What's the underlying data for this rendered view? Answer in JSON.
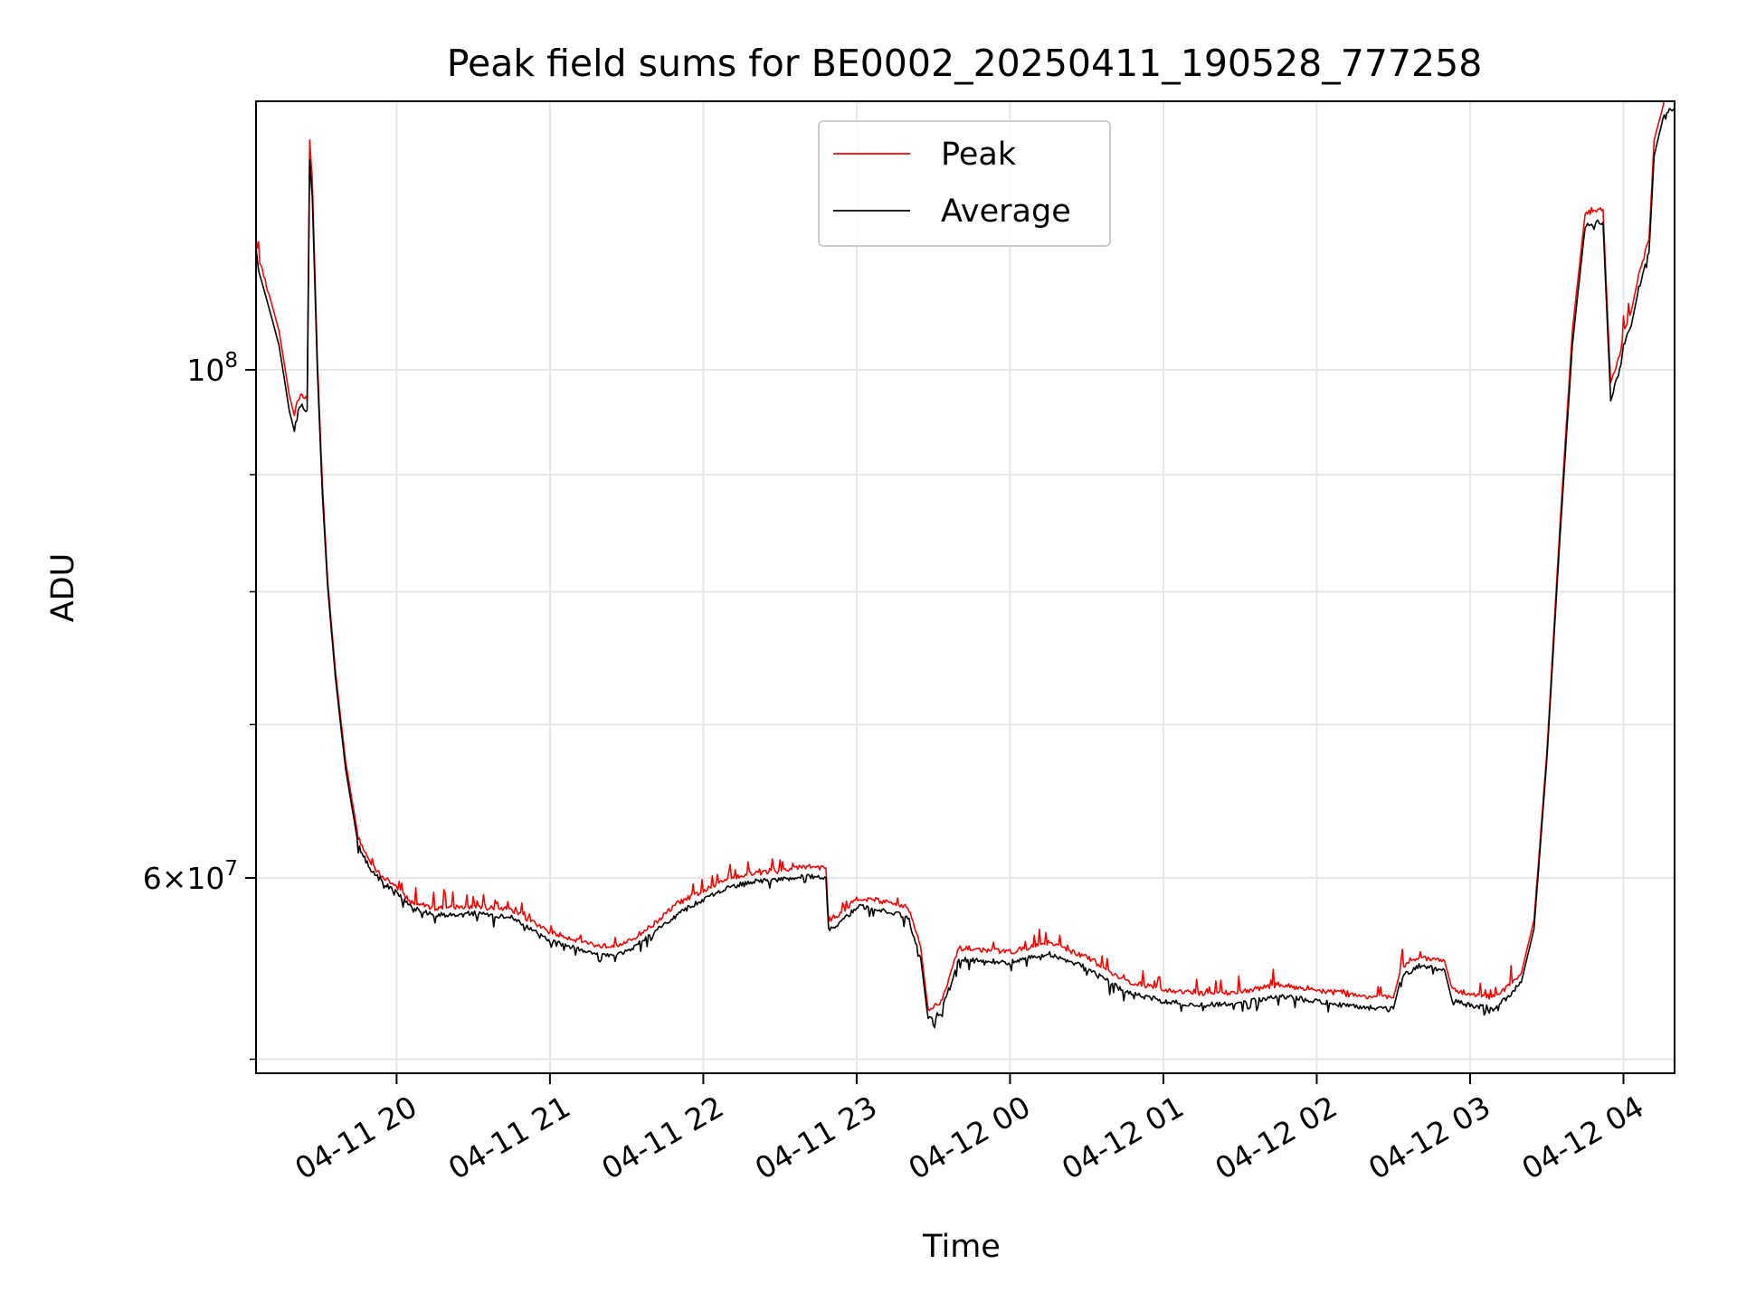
{
  "chart_data": {
    "type": "line",
    "title": "Peak field sums for BE0002_20250411_190528_777258",
    "xlabel": "Time",
    "ylabel": "ADU",
    "y_scale": "log",
    "ylim": [
      49300000,
      131000000
    ],
    "xlim": [
      "04-11 19:05",
      "04-12 04:20"
    ],
    "x_ticks": [
      {
        "value": "04-11 20:00",
        "label": "04-11 20"
      },
      {
        "value": "04-11 21:00",
        "label": "04-11 21"
      },
      {
        "value": "04-11 22:00",
        "label": "04-11 22"
      },
      {
        "value": "04-11 23:00",
        "label": "04-11 23"
      },
      {
        "value": "04-12 00:00",
        "label": "04-12 00"
      },
      {
        "value": "04-12 01:00",
        "label": "04-12 01"
      },
      {
        "value": "04-12 02:00",
        "label": "04-12 02"
      },
      {
        "value": "04-12 03:00",
        "label": "04-12 03"
      },
      {
        "value": "04-12 04:00",
        "label": "04-12 04"
      }
    ],
    "y_major_ticks": [
      {
        "value": 100000000,
        "base": "10",
        "exp": "8",
        "prefix": ""
      },
      {
        "value": 60000000,
        "base": "10",
        "exp": "7",
        "prefix": "6×"
      }
    ],
    "y_minor_ticks": [
      50000000,
      70000000,
      80000000,
      90000000
    ],
    "grid": true,
    "legend_position": "upper-center",
    "series": [
      {
        "name": "Peak",
        "color": "#ff0000",
        "x": [
          "04-11 19:05",
          "04-11 19:06",
          "04-11 19:10",
          "04-11 19:14",
          "04-11 19:18",
          "04-11 19:20",
          "04-11 19:21",
          "04-11 19:23",
          "04-11 19:25",
          "04-11 19:26",
          "04-11 19:27",
          "04-11 19:29",
          "04-11 19:31",
          "04-11 19:33",
          "04-11 19:36",
          "04-11 19:40",
          "04-11 19:45",
          "04-11 19:50",
          "04-11 19:55",
          "04-11 20:00",
          "04-11 20:05",
          "04-11 20:15",
          "04-11 20:30",
          "04-11 20:45",
          "04-11 21:00",
          "04-11 21:10",
          "04-11 21:20",
          "04-11 21:30",
          "04-11 21:40",
          "04-11 21:50",
          "04-11 22:00",
          "04-11 22:10",
          "04-11 22:20",
          "04-11 22:30",
          "04-11 22:40",
          "04-11 22:48",
          "04-11 22:49",
          "04-11 22:55",
          "04-11 23:00",
          "04-11 23:10",
          "04-11 23:20",
          "04-11 23:25",
          "04-11 23:28",
          "04-11 23:33",
          "04-11 23:40",
          "04-11 23:50",
          "04-12 00:00",
          "04-12 00:15",
          "04-12 00:30",
          "04-12 00:45",
          "04-12 01:00",
          "04-12 01:15",
          "04-12 01:30",
          "04-12 01:45",
          "04-12 02:00",
          "04-12 02:15",
          "04-12 02:30",
          "04-12 02:33",
          "04-12 02:40",
          "04-12 02:50",
          "04-12 02:53",
          "04-12 03:00",
          "04-12 03:10",
          "04-12 03:20",
          "04-12 03:25",
          "04-12 03:30",
          "04-12 03:35",
          "04-12 03:40",
          "04-12 03:45",
          "04-12 03:50",
          "04-12 03:52",
          "04-12 03:55",
          "04-12 03:59",
          "04-12 04:00",
          "04-12 04:03",
          "04-12 04:06",
          "04-12 04:10",
          "04-12 04:12",
          "04-12 04:16",
          "04-12 04:20"
        ],
        "values": [
          114000000,
          112000000,
          108000000,
          104000000,
          97500000,
          95500000,
          97000000,
          97500000,
          97000000,
          126000000,
          121000000,
          101000000,
          89000000,
          81000000,
          74000000,
          67500000,
          62500000,
          60800000,
          60000000,
          59500000,
          58600000,
          58200000,
          58300000,
          58100000,
          56800000,
          56400000,
          56000000,
          56200000,
          57200000,
          58500000,
          59200000,
          60000000,
          60300000,
          60400000,
          60700000,
          60600000,
          57500000,
          58000000,
          58800000,
          58600000,
          58300000,
          56000000,
          52500000,
          53000000,
          55900000,
          55800000,
          55700000,
          56200000,
          55400000,
          54100000,
          53600000,
          53400000,
          53500000,
          53900000,
          53600000,
          53300000,
          53200000,
          54800000,
          55400000,
          55200000,
          53600000,
          53400000,
          53200000,
          54500000,
          57500000,
          68000000,
          85000000,
          104000000,
          117000000,
          117500000,
          117500000,
          98500000,
          102000000,
          104000000,
          106000000,
          110000000,
          114000000,
          126000000,
          131000000,
          131500000
        ]
      },
      {
        "name": "Average",
        "color": "#000000",
        "x": [
          "04-11 19:05",
          "04-11 19:06",
          "04-11 19:10",
          "04-11 19:14",
          "04-11 19:18",
          "04-11 19:20",
          "04-11 19:21",
          "04-11 19:23",
          "04-11 19:25",
          "04-11 19:26",
          "04-11 19:27",
          "04-11 19:29",
          "04-11 19:31",
          "04-11 19:33",
          "04-11 19:36",
          "04-11 19:40",
          "04-11 19:45",
          "04-11 19:50",
          "04-11 19:55",
          "04-11 20:00",
          "04-11 20:05",
          "04-11 20:15",
          "04-11 20:30",
          "04-11 20:45",
          "04-11 21:00",
          "04-11 21:10",
          "04-11 21:20",
          "04-11 21:30",
          "04-11 21:40",
          "04-11 21:50",
          "04-11 22:00",
          "04-11 22:10",
          "04-11 22:20",
          "04-11 22:30",
          "04-11 22:40",
          "04-11 22:48",
          "04-11 22:49",
          "04-11 22:55",
          "04-11 23:00",
          "04-11 23:10",
          "04-11 23:20",
          "04-11 23:25",
          "04-11 23:28",
          "04-11 23:33",
          "04-11 23:40",
          "04-11 23:50",
          "04-12 00:00",
          "04-12 00:15",
          "04-12 00:30",
          "04-12 00:45",
          "04-12 01:00",
          "04-12 01:15",
          "04-12 01:30",
          "04-12 01:45",
          "04-12 02:00",
          "04-12 02:15",
          "04-12 02:30",
          "04-12 02:33",
          "04-12 02:40",
          "04-12 02:50",
          "04-12 02:53",
          "04-12 03:00",
          "04-12 03:10",
          "04-12 03:20",
          "04-12 03:25",
          "04-12 03:30",
          "04-12 03:35",
          "04-12 03:40",
          "04-12 03:45",
          "04-12 03:50",
          "04-12 03:52",
          "04-12 03:55",
          "04-12 03:59",
          "04-12 04:00",
          "04-12 04:03",
          "04-12 04:06",
          "04-12 04:10",
          "04-12 04:12",
          "04-12 04:16",
          "04-12 04:20"
        ],
        "values": [
          113000000,
          110500000,
          106500000,
          102500000,
          96000000,
          94000000,
          95800000,
          96500000,
          96000000,
          123500000,
          119000000,
          100000000,
          88000000,
          80500000,
          73500000,
          67000000,
          62000000,
          60400000,
          59700000,
          59100000,
          58300000,
          57800000,
          57900000,
          57700000,
          56300000,
          55900000,
          55500000,
          55700000,
          56700000,
          57900000,
          58700000,
          59500000,
          59800000,
          59900000,
          60100000,
          60000000,
          56900000,
          57500000,
          58300000,
          58100000,
          57700000,
          55400000,
          52000000,
          52400000,
          55300000,
          55200000,
          55100000,
          55600000,
          54800000,
          53500000,
          53000000,
          52800000,
          52900000,
          53300000,
          53000000,
          52700000,
          52600000,
          54300000,
          54900000,
          54700000,
          53000000,
          52800000,
          52600000,
          54000000,
          57000000,
          67500000,
          84000000,
          102500000,
          115500000,
          116000000,
          116000000,
          97000000,
          100500000,
          102500000,
          104500000,
          108500000,
          112500000,
          124000000,
          129500000,
          130000000
        ]
      }
    ]
  }
}
